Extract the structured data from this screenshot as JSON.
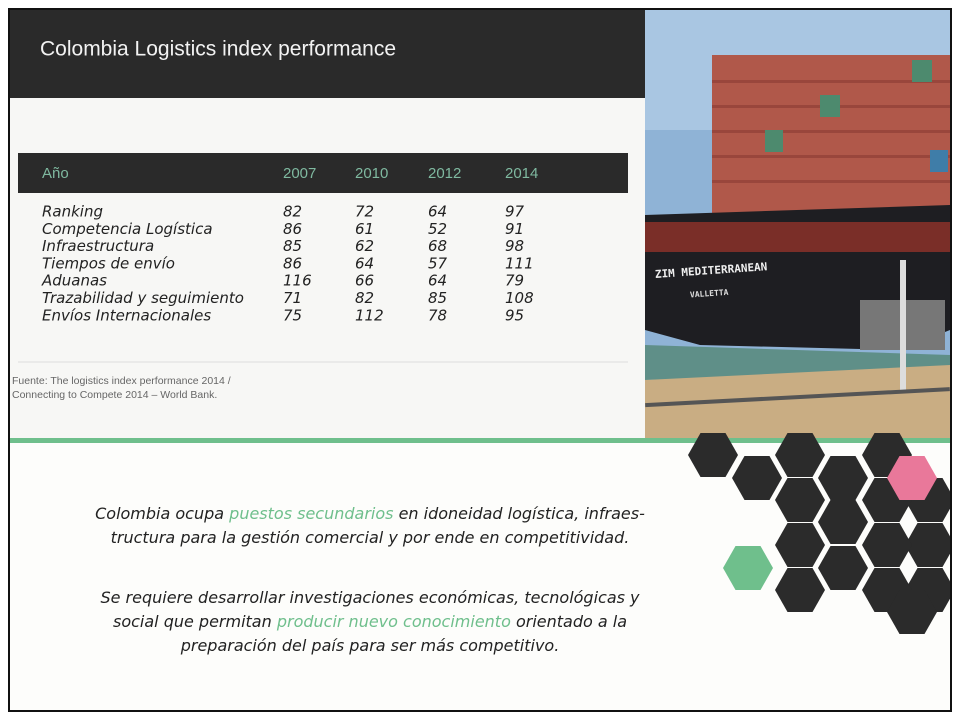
{
  "header": {
    "title": "Colombia Logistics index performance"
  },
  "table": {
    "columns": [
      "Año",
      "2007",
      "2010",
      "2012",
      "2014"
    ],
    "rows": [
      [
        "Ranking",
        82,
        72,
        64,
        97
      ],
      [
        "Competencia Logística",
        86,
        61,
        52,
        91
      ],
      [
        "Infraestructura",
        85,
        62,
        68,
        98
      ],
      [
        "Tiempos de envío",
        86,
        64,
        57,
        111
      ],
      [
        "Aduanas",
        116,
        66,
        64,
        79
      ],
      [
        "Trazabilidad y seguimiento",
        71,
        82,
        85,
        108
      ],
      [
        "Envíos Internacionales",
        75,
        112,
        78,
        95
      ]
    ]
  },
  "source": [
    "Fuente: The logistics index performance 2014 /",
    "Connecting to Compete 2014 – World Bank."
  ],
  "photo": {
    "ship_name": "ZIM MEDITERRANEAN",
    "port": "VALLETTA"
  },
  "paragraphs": [
    {
      "lines": [
        [
          {
            "text": "Colombia ocupa "
          },
          {
            "text": "puestos secundarios",
            "emphasis": true
          },
          {
            "text": " en idoneidad logística, infraes-"
          }
        ],
        [
          {
            "text": "tructura para la gestión comercial y por ende en competitividad."
          }
        ]
      ]
    },
    {
      "lines": [
        [
          {
            "text": "Se requiere desarrollar investigaciones económicas, tecnológicas y"
          }
        ],
        [
          {
            "text": "social que permitan "
          },
          {
            "text": "producir nuevo conocimiento",
            "emphasis": true
          },
          {
            "text": " orientado a la"
          }
        ],
        [
          {
            "text": "preparación del país para ser más competitivo."
          }
        ]
      ]
    }
  ]
}
